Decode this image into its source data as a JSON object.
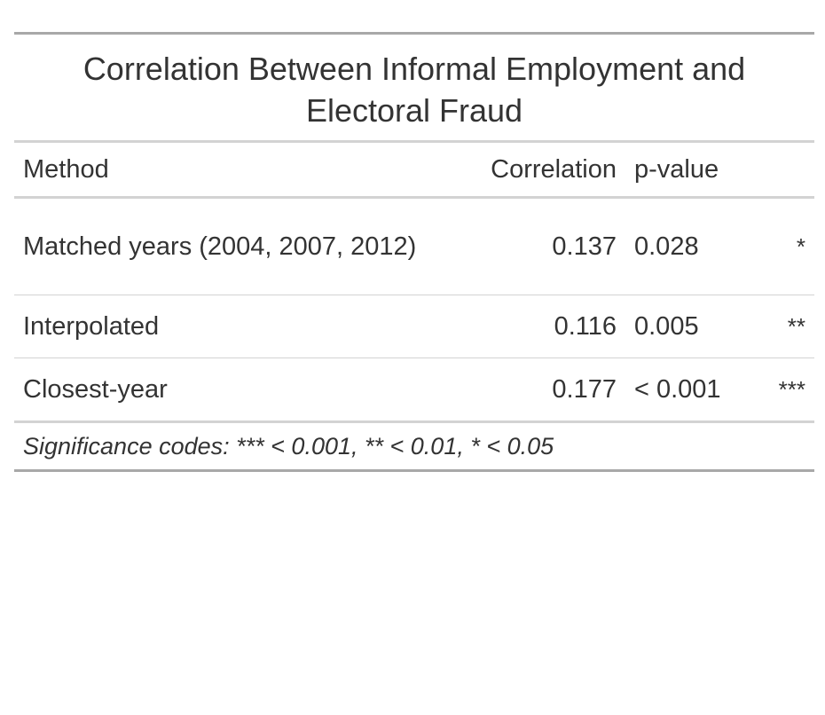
{
  "chart_data": {
    "type": "table",
    "title": "Correlation Between Informal Employment and Electoral Fraud",
    "columns": [
      "Method",
      "Correlation",
      "p-value",
      ""
    ],
    "rows": [
      {
        "method": "Matched years (2004, 2007, 2012)",
        "correlation": "0.137",
        "p_value": "0.028",
        "significance": "*"
      },
      {
        "method": "Interpolated",
        "correlation": "0.116",
        "p_value": "0.005",
        "significance": "**"
      },
      {
        "method": "Closest-year",
        "correlation": "0.177",
        "p_value": "< 0.001",
        "significance": "***"
      }
    ],
    "footnote": "Significance codes: *** < 0.001, ** < 0.01, * < 0.05"
  }
}
